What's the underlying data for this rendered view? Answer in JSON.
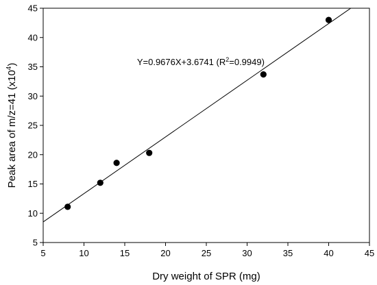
{
  "chart_data": {
    "type": "scatter",
    "xlabel": "Dry weight of SPR (mg)",
    "ylabel": {
      "prefix": "Peak area of m/z=41 (x10",
      "sup": "4",
      "suffix": ")"
    },
    "xlim": [
      5,
      45
    ],
    "ylim": [
      5,
      45
    ],
    "xticks": [
      5,
      10,
      15,
      20,
      25,
      30,
      35,
      40,
      45
    ],
    "yticks": [
      5,
      10,
      15,
      20,
      25,
      30,
      35,
      40,
      45
    ],
    "grid": false,
    "legend": "none",
    "marker_color": "#000000",
    "line_color": "#000000",
    "points": [
      {
        "x": 8,
        "y": 11.1
      },
      {
        "x": 12,
        "y": 15.2
      },
      {
        "x": 14,
        "y": 18.6
      },
      {
        "x": 18,
        "y": 20.3
      },
      {
        "x": 32,
        "y": 33.7
      },
      {
        "x": 40,
        "y": 43.0
      }
    ],
    "fit": {
      "slope": 0.9676,
      "intercept": 3.6741
    },
    "annotation": {
      "prefix": "Y=0.9676X+3.6741 (R",
      "sup": "2",
      "suffix": "=0.9949)",
      "anchor": {
        "x": 16.5,
        "y": 35.3
      }
    }
  }
}
